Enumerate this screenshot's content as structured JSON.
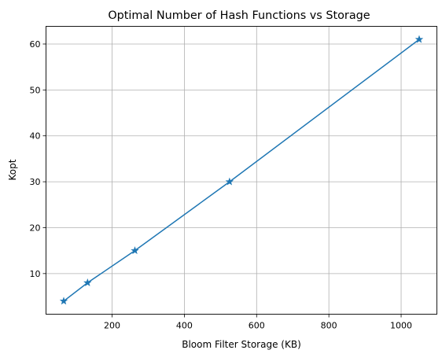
{
  "chart_data": {
    "type": "line",
    "title": "Optimal Number of Hash Functions vs Storage",
    "xlabel": "Bloom Filter Storage (KB)",
    "ylabel": "Kopt",
    "x": [
      66,
      132,
      263,
      525,
      1050
    ],
    "series": [
      {
        "values": [
          4,
          8,
          15,
          30,
          61
        ]
      }
    ],
    "marker": "star",
    "xlim": [
      17,
      1099
    ],
    "ylim": [
      1.15,
      63.85
    ],
    "xticks": [
      200,
      400,
      600,
      800,
      1000
    ],
    "yticks": [
      10,
      20,
      30,
      40,
      50,
      60
    ],
    "grid": true,
    "colors": {
      "line": "#1f77b4",
      "grid": "#b0b0b0",
      "axis": "#000000"
    }
  }
}
